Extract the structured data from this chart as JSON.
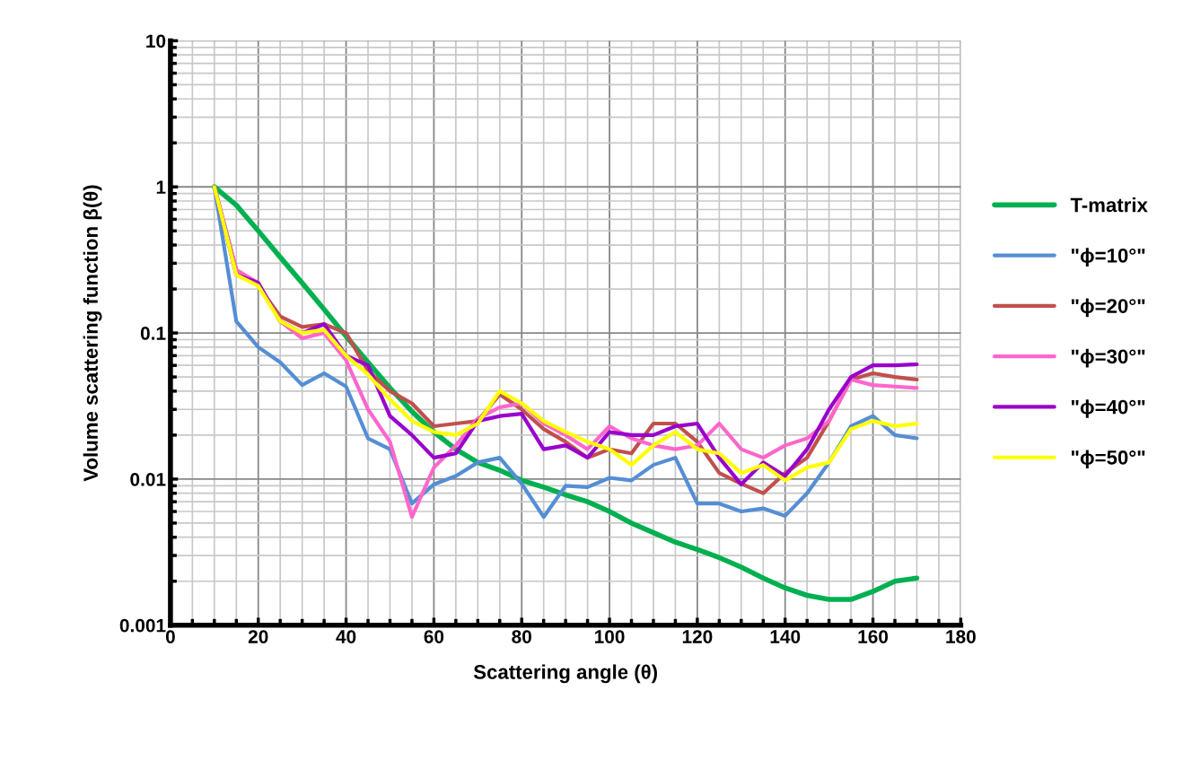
{
  "chart_data": {
    "type": "line",
    "xlabel": "Scattering angle (θ)",
    "ylabel": "Volume scattering function β(θ)",
    "x": [
      10,
      15,
      20,
      25,
      30,
      35,
      40,
      45,
      50,
      55,
      60,
      65,
      70,
      75,
      80,
      85,
      90,
      95,
      100,
      105,
      110,
      115,
      120,
      125,
      130,
      135,
      140,
      145,
      150,
      155,
      160,
      165,
      170
    ],
    "series": [
      {
        "name": "T-matrix",
        "color": "#00b050",
        "values": [
          1,
          0.75,
          0.5,
          0.33,
          0.22,
          0.145,
          0.095,
          0.063,
          0.042,
          0.029,
          0.021,
          0.016,
          0.013,
          0.0115,
          0.0098,
          0.0088,
          0.0078,
          0.007,
          0.006,
          0.005,
          0.0043,
          0.0037,
          0.0033,
          0.0029,
          0.0025,
          0.0021,
          0.0018,
          0.0016,
          0.0015,
          0.0015,
          0.0017,
          0.002,
          0.0021
        ]
      },
      {
        "name": "\"ϕ=10°\"",
        "color": "#558ed5",
        "values": [
          1,
          0.12,
          0.08,
          0.063,
          0.044,
          0.053,
          0.043,
          0.019,
          0.016,
          0.0068,
          0.0092,
          0.0105,
          0.013,
          0.014,
          0.0093,
          0.0055,
          0.009,
          0.0088,
          0.0102,
          0.0098,
          0.0125,
          0.014,
          0.0068,
          0.0068,
          0.006,
          0.0063,
          0.0056,
          0.008,
          0.013,
          0.023,
          0.027,
          0.02,
          0.019
        ]
      },
      {
        "name": "\"ϕ=20°\"",
        "color": "#c0504d",
        "values": [
          1,
          0.27,
          0.21,
          0.13,
          0.11,
          0.115,
          0.1,
          0.055,
          0.04,
          0.033,
          0.023,
          0.024,
          0.025,
          0.038,
          0.03,
          0.022,
          0.018,
          0.014,
          0.016,
          0.015,
          0.024,
          0.024,
          0.018,
          0.011,
          0.0093,
          0.008,
          0.011,
          0.014,
          0.025,
          0.048,
          0.053,
          0.05,
          0.048
        ]
      },
      {
        "name": "\"ϕ=30°\"",
        "color": "#ff66cc",
        "values": [
          1,
          0.27,
          0.22,
          0.12,
          0.092,
          0.1,
          0.065,
          0.03,
          0.018,
          0.0055,
          0.012,
          0.017,
          0.026,
          0.031,
          0.033,
          0.024,
          0.02,
          0.016,
          0.023,
          0.019,
          0.017,
          0.016,
          0.017,
          0.024,
          0.016,
          0.014,
          0.017,
          0.019,
          0.025,
          0.048,
          0.044,
          0.043,
          0.042
        ]
      },
      {
        "name": "\"ϕ=40°\"",
        "color": "#9900cc",
        "values": [
          1,
          0.25,
          0.22,
          0.12,
          0.1,
          0.115,
          0.07,
          0.06,
          0.027,
          0.02,
          0.014,
          0.015,
          0.025,
          0.027,
          0.028,
          0.016,
          0.017,
          0.014,
          0.021,
          0.02,
          0.02,
          0.023,
          0.024,
          0.014,
          0.0092,
          0.013,
          0.0105,
          0.016,
          0.03,
          0.05,
          0.06,
          0.06,
          0.061
        ]
      },
      {
        "name": "\"ϕ=50°\"",
        "color": "#ffff00",
        "values": [
          1,
          0.25,
          0.21,
          0.12,
          0.1,
          0.105,
          0.07,
          0.052,
          0.035,
          0.025,
          0.021,
          0.02,
          0.024,
          0.04,
          0.033,
          0.025,
          0.021,
          0.018,
          0.016,
          0.0125,
          0.017,
          0.021,
          0.016,
          0.015,
          0.011,
          0.0125,
          0.0098,
          0.012,
          0.013,
          0.022,
          0.025,
          0.023,
          0.024
        ]
      }
    ],
    "xlim": [
      0,
      180
    ],
    "xticks": [
      0,
      20,
      40,
      60,
      80,
      100,
      120,
      140,
      160,
      180
    ],
    "ylim": [
      0.001,
      10
    ],
    "yticks": [
      0.001,
      0.01,
      0.1,
      1,
      10
    ],
    "log": "y",
    "grid": true,
    "legend": "right",
    "marker": "none",
    "line_style": "solid"
  }
}
